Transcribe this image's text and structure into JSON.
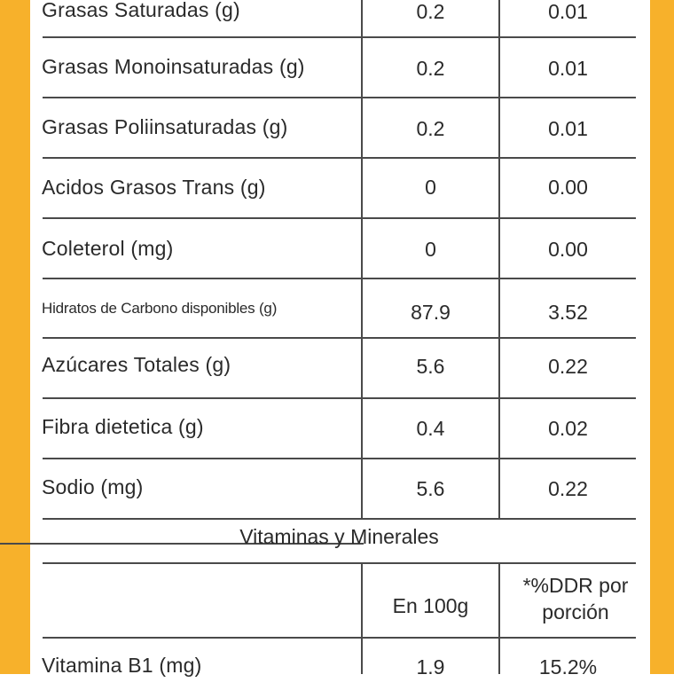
{
  "nutrients": [
    {
      "label": "Grasas Saturadas (g)",
      "per100": "0.2",
      "perPortion": "0.01"
    },
    {
      "label": "Grasas Monoinsaturadas (g)",
      "per100": "0.2",
      "perPortion": "0.01"
    },
    {
      "label": "Grasas Poliinsaturadas (g)",
      "per100": "0.2",
      "perPortion": "0.01"
    },
    {
      "label": "Acidos Grasos Trans (g)",
      "per100": "0",
      "perPortion": "0.00"
    },
    {
      "label": "Coleterol (mg)",
      "per100": "0",
      "perPortion": "0.00"
    },
    {
      "label": "Hidratos de Carbono disponibles  (g)",
      "per100": "87.9",
      "perPortion": "3.52"
    },
    {
      "label": "Azúcares Totales (g)",
      "per100": "5.6",
      "perPortion": "0.22"
    },
    {
      "label": "Fibra dietetica (g)",
      "per100": "0.4",
      "perPortion": "0.02"
    },
    {
      "label": "Sodio (mg)",
      "per100": "5.6",
      "perPortion": "0.22"
    }
  ],
  "vitamins": {
    "title": "Vitaminas y Minerales",
    "col1_header": "En 100g",
    "col2_header_line1": "*%DDR por",
    "col2_header_line2": "porción",
    "rows": [
      {
        "label": "Vitamina B1 (mg)",
        "per100": "1.9",
        "ddr": "15.2%"
      }
    ]
  },
  "colors": {
    "accent": "#f7b12b",
    "rule": "#4a4a4a",
    "text": "#2a2a2a"
  }
}
